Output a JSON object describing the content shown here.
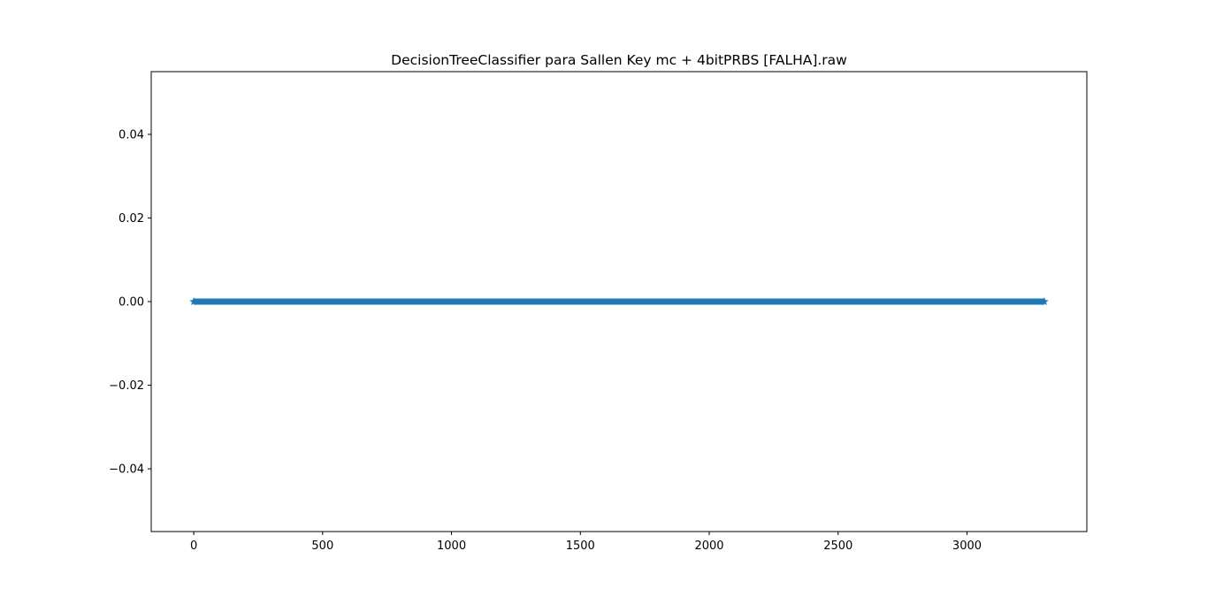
{
  "chart_data": {
    "type": "scatter",
    "title": "DecisionTreeClassifier para Sallen Key mc + 4bitPRBS [FALHA].raw",
    "xlabel": "",
    "ylabel": "",
    "xlim": [
      -165,
      3465
    ],
    "ylim": [
      -0.055,
      0.055
    ],
    "x_ticks": [
      0,
      500,
      1000,
      1500,
      2000,
      2500,
      3000
    ],
    "x_tick_labels": [
      "0",
      "500",
      "1000",
      "1500",
      "2000",
      "2500",
      "3000"
    ],
    "y_ticks": [
      0.04,
      0.02,
      0.0,
      -0.02,
      -0.04
    ],
    "y_tick_labels": [
      "0.04",
      "0.02",
      "0.00",
      "−0.02",
      "−0.04"
    ],
    "grid": false,
    "series": [
      {
        "x_start": 0,
        "x_end": 3300,
        "y": 0.0,
        "color": "#1f77b4",
        "marker": "*"
      }
    ]
  }
}
